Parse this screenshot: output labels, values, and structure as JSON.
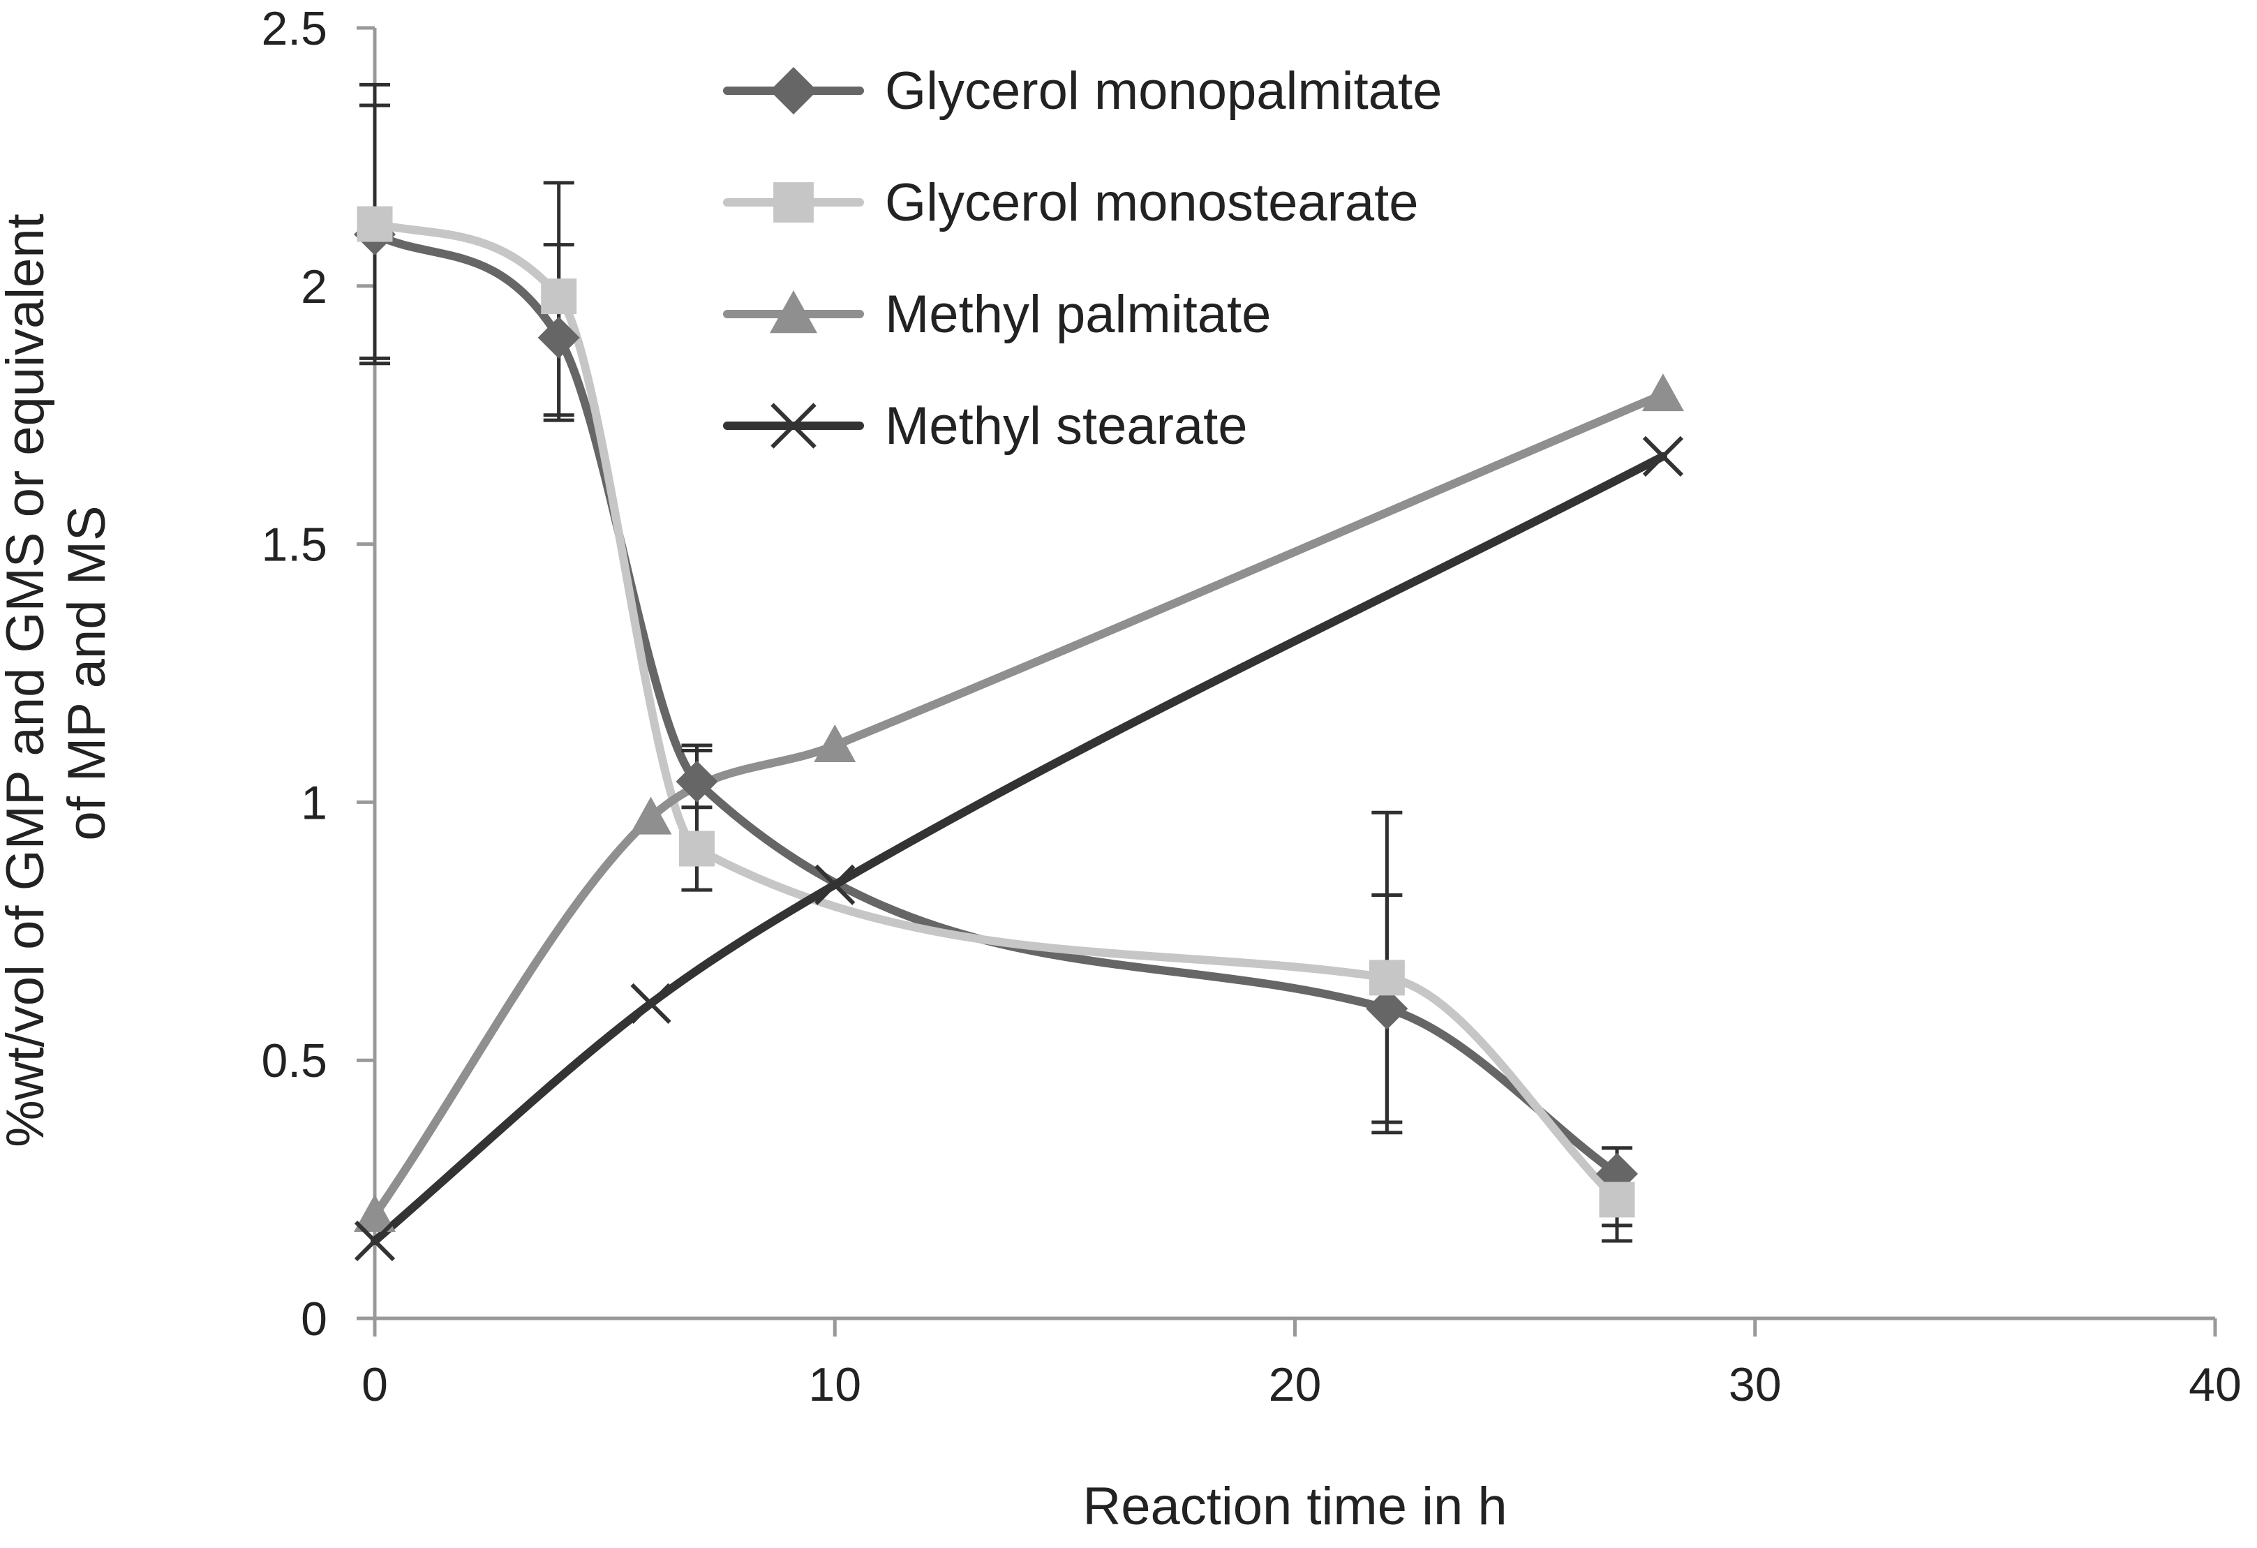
{
  "chart_data": {
    "type": "line",
    "title": "",
    "xlabel": "Reaction time in h",
    "ylabel_lines": [
      "%wt/vol of GMP and GMS or equivalent",
      "of MP and MS"
    ],
    "xlim": [
      0,
      40
    ],
    "ylim": [
      0,
      2.5
    ],
    "x_ticks": [
      0,
      10,
      20,
      30,
      40
    ],
    "y_ticks": [
      0,
      0.5,
      1,
      1.5,
      2,
      2.5
    ],
    "x_tick_labels": [
      "0",
      "10",
      "20",
      "30",
      "40"
    ],
    "y_tick_labels": [
      "0",
      "0.5",
      "1",
      "1.5",
      "2",
      "2.5"
    ],
    "grid": false,
    "legend_position": "top-center",
    "smoothed": true,
    "series": [
      {
        "name": "Glycerol monopalmitate",
        "marker": "diamond",
        "color": "#666666",
        "x": [
          0,
          4,
          7,
          22,
          27
        ],
        "y": [
          2.1,
          1.9,
          1.04,
          0.6,
          0.28
        ],
        "err_low": [
          1.85,
          1.75,
          0.99,
          0.38,
          0.18
        ],
        "err_high": [
          2.35,
          2.08,
          1.1,
          0.82,
          0.33
        ]
      },
      {
        "name": "Glycerol monostearate",
        "marker": "square",
        "color": "#c6c6c6",
        "x": [
          0,
          4,
          7,
          22,
          27
        ],
        "y": [
          2.12,
          1.98,
          0.91,
          0.66,
          0.23
        ],
        "err_low": [
          1.86,
          1.74,
          0.83,
          0.36,
          0.15
        ],
        "err_high": [
          2.39,
          2.2,
          1.11,
          0.98,
          0.33
        ]
      },
      {
        "name": "Methyl palmitate",
        "marker": "triangle",
        "color": "#8f8f8f",
        "x": [
          0,
          6,
          10,
          28
        ],
        "y": [
          0.2,
          0.97,
          1.11,
          1.79
        ],
        "err_low": [],
        "err_high": []
      },
      {
        "name": "Methyl stearate",
        "marker": "x",
        "color": "#333333",
        "x": [
          0,
          6,
          10,
          28
        ],
        "y": [
          0.15,
          0.61,
          0.84,
          1.67
        ],
        "err_low": [],
        "err_high": []
      }
    ]
  }
}
